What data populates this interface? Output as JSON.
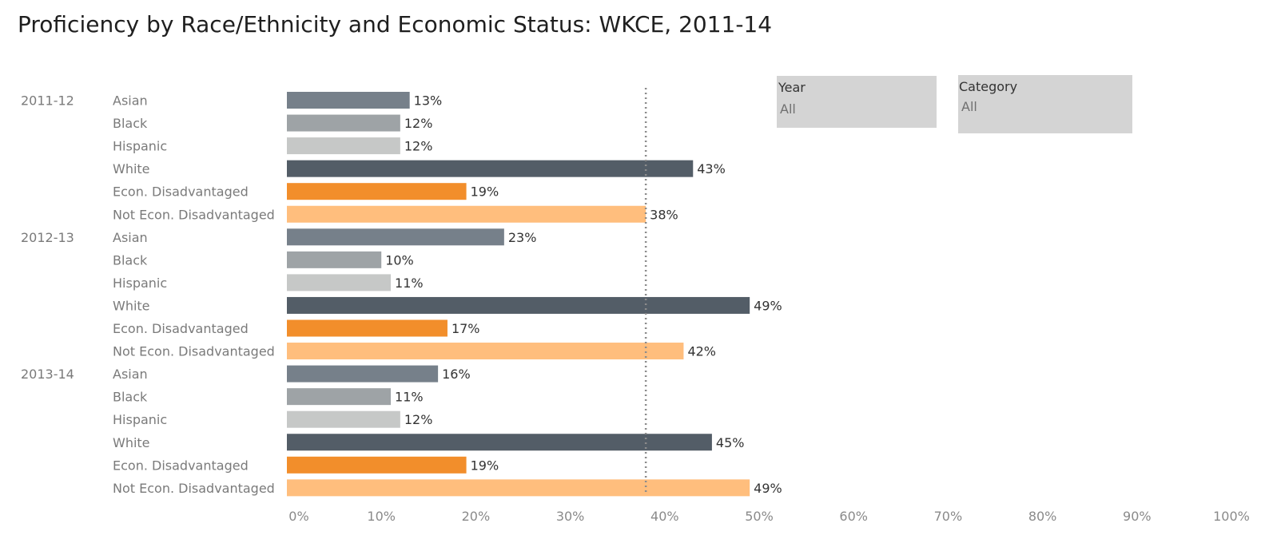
{
  "title": "Proficiency by Race/Ethnicity and Economic Status: WKCE, 2011-14",
  "filters": [
    {
      "label": "Year",
      "value": "All"
    },
    {
      "label": "Category",
      "value": "All"
    }
  ],
  "chart_data": {
    "type": "bar",
    "orientation": "horizontal",
    "title": "Proficiency by Race/Ethnicity and Economic Status: WKCE, 2011-14",
    "xlim": [
      0,
      100
    ],
    "x_ticks": [
      "0%",
      "10%",
      "20%",
      "30%",
      "40%",
      "50%",
      "60%",
      "70%",
      "80%",
      "90%",
      "100%"
    ],
    "reference_line": {
      "value": 38,
      "style": "dotted"
    },
    "groups": [
      {
        "year": "2011-12",
        "bars": [
          {
            "category": "Asian",
            "value": 13,
            "label": "13%"
          },
          {
            "category": "Black",
            "value": 12,
            "label": "12%"
          },
          {
            "category": "Hispanic",
            "value": 12,
            "label": "12%"
          },
          {
            "category": "White",
            "value": 43,
            "label": "43%"
          },
          {
            "category": "Econ. Disadvantaged",
            "value": 19,
            "label": "19%"
          },
          {
            "category": "Not Econ. Disadvantaged",
            "value": 38,
            "label": "38%"
          }
        ]
      },
      {
        "year": "2012-13",
        "bars": [
          {
            "category": "Asian",
            "value": 23,
            "label": "23%"
          },
          {
            "category": "Black",
            "value": 10,
            "label": "10%"
          },
          {
            "category": "Hispanic",
            "value": 11,
            "label": "11%"
          },
          {
            "category": "White",
            "value": 49,
            "label": "49%"
          },
          {
            "category": "Econ. Disadvantaged",
            "value": 17,
            "label": "17%"
          },
          {
            "category": "Not Econ. Disadvantaged",
            "value": 42,
            "label": "42%"
          }
        ]
      },
      {
        "year": "2013-14",
        "bars": [
          {
            "category": "Asian",
            "value": 16,
            "label": "16%"
          },
          {
            "category": "Black",
            "value": 11,
            "label": "11%"
          },
          {
            "category": "Hispanic",
            "value": 12,
            "label": "12%"
          },
          {
            "category": "White",
            "value": 45,
            "label": "45%"
          },
          {
            "category": "Econ. Disadvantaged",
            "value": 19,
            "label": "19%"
          },
          {
            "category": "Not Econ. Disadvantaged",
            "value": 49,
            "label": "49%"
          }
        ]
      }
    ],
    "colors": {
      "Asian": "#76808a",
      "Black": "#9ea3a6",
      "Hispanic": "#c6c8c7",
      "White": "#535d67",
      "Econ. Disadvantaged": "#f28e2b",
      "Not Econ. Disadvantaged": "#ffbe7d"
    },
    "grid": false
  }
}
